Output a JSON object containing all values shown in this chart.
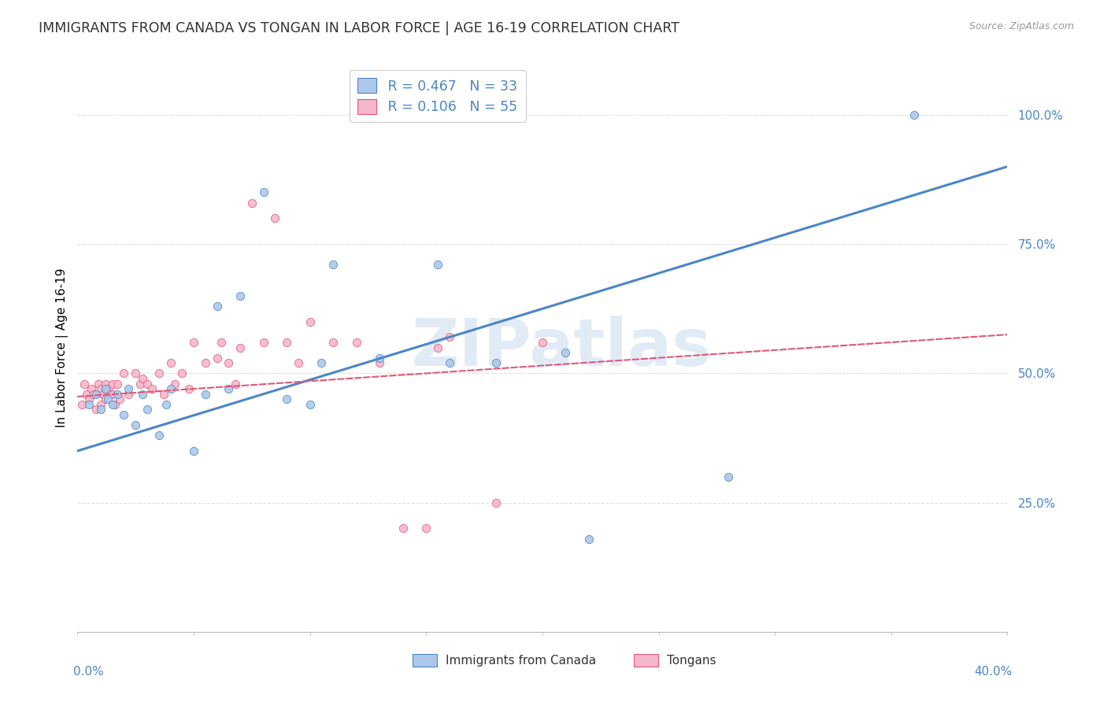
{
  "title": "IMMIGRANTS FROM CANADA VS TONGAN IN LABOR FORCE | AGE 16-19 CORRELATION CHART",
  "source": "Source: ZipAtlas.com",
  "ylabel": "In Labor Force | Age 16-19",
  "xlim": [
    0.0,
    0.4
  ],
  "ylim": [
    0.0,
    1.1
  ],
  "legend_r_canada": "R = 0.467",
  "legend_n_canada": "N = 33",
  "legend_r_tongan": "R = 0.106",
  "legend_n_tongan": "N = 55",
  "canada_color": "#adc8e8",
  "tongan_color": "#f5b8ca",
  "canada_line_color": "#4a86c8",
  "tongan_line_color": "#e05878",
  "watermark": "ZIPatlas",
  "canada_scatter_x": [
    0.005,
    0.008,
    0.01,
    0.012,
    0.013,
    0.015,
    0.017,
    0.02,
    0.022,
    0.025,
    0.028,
    0.03,
    0.035,
    0.038,
    0.04,
    0.05,
    0.055,
    0.06,
    0.065,
    0.07,
    0.08,
    0.09,
    0.1,
    0.105,
    0.11,
    0.13,
    0.155,
    0.16,
    0.18,
    0.21,
    0.22,
    0.28,
    0.36
  ],
  "canada_scatter_y": [
    0.44,
    0.46,
    0.43,
    0.47,
    0.45,
    0.44,
    0.46,
    0.42,
    0.47,
    0.4,
    0.46,
    0.43,
    0.38,
    0.44,
    0.47,
    0.35,
    0.46,
    0.63,
    0.47,
    0.65,
    0.85,
    0.45,
    0.44,
    0.52,
    0.71,
    0.53,
    0.71,
    0.52,
    0.52,
    0.54,
    0.18,
    0.3,
    1.0
  ],
  "tongan_scatter_x": [
    0.002,
    0.003,
    0.004,
    0.005,
    0.006,
    0.007,
    0.008,
    0.009,
    0.01,
    0.01,
    0.011,
    0.012,
    0.012,
    0.013,
    0.014,
    0.015,
    0.015,
    0.016,
    0.017,
    0.018,
    0.02,
    0.022,
    0.025,
    0.027,
    0.028,
    0.03,
    0.032,
    0.035,
    0.037,
    0.04,
    0.042,
    0.045,
    0.048,
    0.05,
    0.055,
    0.06,
    0.062,
    0.065,
    0.068,
    0.07,
    0.075,
    0.08,
    0.085,
    0.09,
    0.095,
    0.1,
    0.11,
    0.12,
    0.13,
    0.14,
    0.15,
    0.155,
    0.16,
    0.18,
    0.2
  ],
  "tongan_scatter_y": [
    0.44,
    0.48,
    0.46,
    0.45,
    0.47,
    0.46,
    0.43,
    0.48,
    0.44,
    0.47,
    0.46,
    0.45,
    0.48,
    0.47,
    0.46,
    0.46,
    0.48,
    0.44,
    0.48,
    0.45,
    0.5,
    0.46,
    0.5,
    0.48,
    0.49,
    0.48,
    0.47,
    0.5,
    0.46,
    0.52,
    0.48,
    0.5,
    0.47,
    0.56,
    0.52,
    0.53,
    0.56,
    0.52,
    0.48,
    0.55,
    0.83,
    0.56,
    0.8,
    0.56,
    0.52,
    0.6,
    0.56,
    0.56,
    0.52,
    0.2,
    0.2,
    0.55,
    0.57,
    0.25,
    0.56
  ],
  "canada_trend_x": [
    0.0,
    0.4
  ],
  "canada_trend_y": [
    0.35,
    0.9
  ],
  "tongan_trend_x": [
    0.0,
    0.4
  ],
  "tongan_trend_y": [
    0.455,
    0.575
  ],
  "grid_color": "#e0e0e0",
  "axis_label_color": "#4a86c8",
  "scatter_size": 55,
  "title_fontsize": 12.5
}
